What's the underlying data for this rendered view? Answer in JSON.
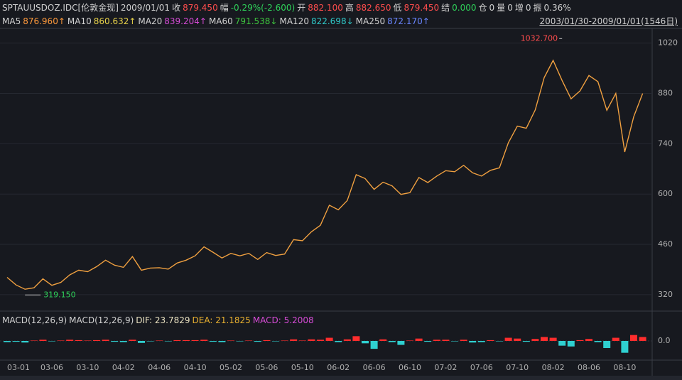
{
  "header": {
    "symbol": "SPTAUUSDOZ.IDC[伦敦金现]",
    "date": "2009/01/01",
    "fields": [
      {
        "label": "收",
        "value": "879.450",
        "color": "#ff4d4d"
      },
      {
        "label": "幅",
        "value": "-0.29%(-2.600)",
        "color": "#2fd15a"
      },
      {
        "label": "开",
        "value": "882.100",
        "color": "#ff4d4d"
      },
      {
        "label": "高",
        "value": "882.650",
        "color": "#ff4d4d"
      },
      {
        "label": "低",
        "value": "879.450",
        "color": "#ff4d4d"
      },
      {
        "label": "结",
        "value": "0.000",
        "color": "#2fd15a"
      },
      {
        "label": "仓",
        "value": "0",
        "color": "#d0d0d0"
      },
      {
        "label": "量",
        "value": "0",
        "color": "#d0d0d0"
      },
      {
        "label": "增",
        "value": "0",
        "color": "#d0d0d0"
      },
      {
        "label": "振",
        "value": "0.36%",
        "color": "#d0d0d0"
      }
    ]
  },
  "ma_row": {
    "items": [
      {
        "label": "MA5",
        "value": "876.960↑",
        "color": "#ff9a3c"
      },
      {
        "label": "MA10",
        "value": "860.632↑",
        "color": "#e8d24a"
      },
      {
        "label": "MA20",
        "value": "839.204↑",
        "color": "#d54bd5"
      },
      {
        "label": "MA60",
        "value": "791.538↓",
        "color": "#3ec33e"
      },
      {
        "label": "MA120",
        "value": "822.698↓",
        "color": "#2fc7c7"
      },
      {
        "label": "MA250",
        "value": "872.170↑",
        "color": "#6a86ff"
      }
    ],
    "range": "2003/01/30-2009/01/01(1546日)"
  },
  "chart_data": [
    {
      "type": "line",
      "color": "#f0a040",
      "categories": [
        "03-01",
        null,
        null,
        null,
        null,
        "03-06",
        null,
        null,
        null,
        "03-10",
        null,
        null,
        null,
        "04-02",
        null,
        null,
        null,
        "04-06",
        null,
        null,
        null,
        "04-10",
        null,
        null,
        null,
        "05-02",
        null,
        null,
        null,
        "05-06",
        null,
        null,
        null,
        "05-10",
        null,
        null,
        null,
        "06-02",
        null,
        null,
        null,
        "06-06",
        null,
        null,
        null,
        "06-10",
        null,
        null,
        null,
        "07-02",
        null,
        null,
        null,
        "07-06",
        null,
        null,
        null,
        "07-10",
        null,
        null,
        null,
        "08-02",
        null,
        null,
        null,
        "08-06",
        null,
        null,
        null,
        "08-10",
        null,
        null
      ],
      "values": [
        368,
        347,
        335,
        339,
        364,
        346,
        354,
        375,
        388,
        384,
        398,
        416,
        402,
        396,
        426,
        388,
        394,
        395,
        391,
        408,
        416,
        428,
        453,
        438,
        422,
        435,
        428,
        435,
        418,
        437,
        429,
        433,
        473,
        470,
        495,
        513,
        569,
        556,
        582,
        654,
        643,
        613,
        633,
        623,
        599,
        604,
        646,
        632,
        650,
        665,
        662,
        680,
        659,
        650,
        666,
        673,
        743,
        789,
        783,
        834,
        924,
        972,
        916,
        865,
        887,
        930,
        913,
        833,
        880,
        717,
        815,
        880
      ],
      "ylim": [
        290,
        1061
      ],
      "yticks": [
        320,
        460,
        600,
        740,
        880,
        1020
      ],
      "grid": true,
      "annotations": [
        {
          "label": "1032.700",
          "value": 1032.7
        },
        {
          "label": "319.150",
          "value": 319.15
        }
      ]
    },
    {
      "type": "bar",
      "title": "MACD(12,26,9)",
      "dif": "DIF: 23.7829",
      "dea": "DEA: 21.1825",
      "macd": "MACD: 5.2008",
      "positive_color": "#ff2d2d",
      "negative_color": "#2fd0d0",
      "values": [
        -3,
        -2,
        -4,
        1,
        3,
        -1,
        1,
        3,
        2,
        1,
        2,
        3,
        -2,
        -3,
        3,
        -5,
        -1,
        1,
        -1,
        2,
        2,
        2,
        3,
        -2,
        -3,
        1,
        -1,
        1,
        -2,
        2,
        -1,
        1,
        4,
        1,
        4,
        3,
        8,
        -3,
        4,
        12,
        -6,
        -20,
        4,
        -3,
        -10,
        1,
        6,
        -2,
        3,
        3,
        -1,
        3,
        -4,
        -3,
        2,
        -1,
        8,
        6,
        -2,
        5,
        10,
        8,
        -12,
        -14,
        2,
        5,
        -3,
        -18,
        8,
        -30,
        15,
        10
      ],
      "ylim": [
        -45,
        45
      ],
      "yticks": [
        {
          "value": 0,
          "label": "0.0"
        }
      ]
    }
  ]
}
